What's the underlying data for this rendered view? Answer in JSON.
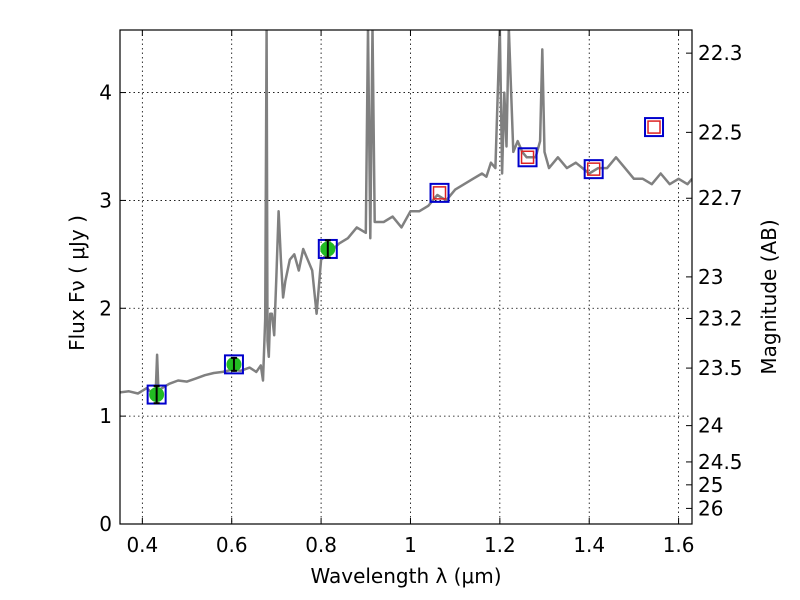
{
  "chart_data": {
    "type": "line",
    "xlabel": "Wavelength  λ (μm)",
    "ylabel": "Flux  Fν  ( μJy )",
    "y2label": "Magnitude (AB)",
    "xlim": [
      0.35,
      1.63
    ],
    "ylim": [
      0,
      4.58
    ],
    "grid": true,
    "x_ticks": [
      {
        "value": 0.4,
        "label": "0.4"
      },
      {
        "value": 0.6,
        "label": "0.6"
      },
      {
        "value": 0.8,
        "label": "0.8"
      },
      {
        "value": 1.0,
        "label": "1"
      },
      {
        "value": 1.2,
        "label": "1.2"
      },
      {
        "value": 1.4,
        "label": "1.4"
      },
      {
        "value": 1.6,
        "label": "1.6"
      }
    ],
    "y_ticks": [
      {
        "value": 0,
        "label": "0"
      },
      {
        "value": 1,
        "label": "1"
      },
      {
        "value": 2,
        "label": "2"
      },
      {
        "value": 3,
        "label": "3"
      },
      {
        "value": 4,
        "label": "4"
      }
    ],
    "y2_ticks": [
      {
        "value": 22.3,
        "label": "22.3"
      },
      {
        "value": 22.5,
        "label": "22.5"
      },
      {
        "value": 22.7,
        "label": "22.7"
      },
      {
        "value": 23,
        "label": "23"
      },
      {
        "value": 23.2,
        "label": "23.2"
      },
      {
        "value": 23.5,
        "label": "23.5"
      },
      {
        "value": 24,
        "label": "24"
      },
      {
        "value": 24.5,
        "label": "24.5"
      },
      {
        "value": 25,
        "label": "25"
      },
      {
        "value": 26,
        "label": "26"
      }
    ],
    "colors": {
      "spectrum": "#808080",
      "model_box": "#0000cc",
      "observed": "#22bb22",
      "upper": "#dd2222"
    },
    "series": [
      {
        "type": "line",
        "x": [
          0.35,
          0.37,
          0.39,
          0.41,
          0.42,
          0.43,
          0.433,
          0.436,
          0.44,
          0.46,
          0.48,
          0.5,
          0.52,
          0.54,
          0.56,
          0.58,
          0.6,
          0.62,
          0.64,
          0.655,
          0.665,
          0.67,
          0.675,
          0.678,
          0.68,
          0.683,
          0.686,
          0.69,
          0.695,
          0.7,
          0.705,
          0.71,
          0.715,
          0.72,
          0.73,
          0.74,
          0.75,
          0.76,
          0.77,
          0.78,
          0.79,
          0.8,
          0.82,
          0.84,
          0.86,
          0.88,
          0.9,
          0.905,
          0.91,
          0.915,
          0.92,
          0.94,
          0.96,
          0.98,
          1.0,
          1.02,
          1.04,
          1.06,
          1.08,
          1.1,
          1.12,
          1.14,
          1.16,
          1.17,
          1.18,
          1.19,
          1.2,
          1.205,
          1.21,
          1.215,
          1.22,
          1.23,
          1.24,
          1.25,
          1.26,
          1.28,
          1.29,
          1.295,
          1.3,
          1.31,
          1.33,
          1.35,
          1.37,
          1.4,
          1.42,
          1.44,
          1.46,
          1.48,
          1.5,
          1.52,
          1.54,
          1.56,
          1.58,
          1.6,
          1.62,
          1.63
        ],
        "y": [
          1.22,
          1.23,
          1.21,
          1.26,
          1.22,
          1.25,
          1.57,
          1.24,
          1.25,
          1.3,
          1.33,
          1.32,
          1.35,
          1.38,
          1.4,
          1.41,
          1.43,
          1.42,
          1.45,
          1.41,
          1.47,
          1.33,
          1.9,
          4.6,
          1.7,
          1.55,
          1.95,
          1.95,
          1.75,
          2.3,
          2.9,
          2.45,
          2.1,
          2.25,
          2.45,
          2.5,
          2.35,
          2.55,
          2.45,
          2.35,
          1.95,
          2.45,
          2.52,
          2.6,
          2.65,
          2.75,
          2.7,
          4.6,
          2.65,
          4.6,
          2.8,
          2.8,
          2.85,
          2.75,
          2.9,
          2.9,
          2.95,
          3.05,
          3.0,
          3.1,
          3.15,
          3.2,
          3.25,
          3.22,
          3.35,
          3.3,
          4.6,
          3.25,
          4.0,
          3.5,
          4.6,
          3.45,
          3.55,
          3.45,
          3.4,
          3.4,
          3.55,
          4.4,
          3.45,
          3.3,
          3.4,
          3.3,
          3.35,
          3.25,
          3.3,
          3.3,
          3.4,
          3.3,
          3.2,
          3.2,
          3.15,
          3.25,
          3.15,
          3.2,
          3.15,
          3.2
        ]
      },
      {
        "type": "model_squares",
        "x": [
          0.432,
          0.605,
          0.815,
          1.065,
          1.262,
          1.41,
          1.545
        ],
        "y": [
          1.2,
          1.48,
          2.55,
          3.07,
          3.4,
          3.29,
          3.68
        ]
      },
      {
        "type": "observed_points",
        "x": [
          0.432,
          0.605,
          0.815
        ],
        "y": [
          1.2,
          1.48,
          2.55
        ],
        "err": [
          0.08,
          0.06,
          0.08
        ]
      },
      {
        "type": "upper_limits",
        "x": [
          1.065,
          1.262,
          1.41,
          1.545
        ],
        "y": [
          3.07,
          3.4,
          3.29,
          3.68
        ]
      }
    ]
  }
}
